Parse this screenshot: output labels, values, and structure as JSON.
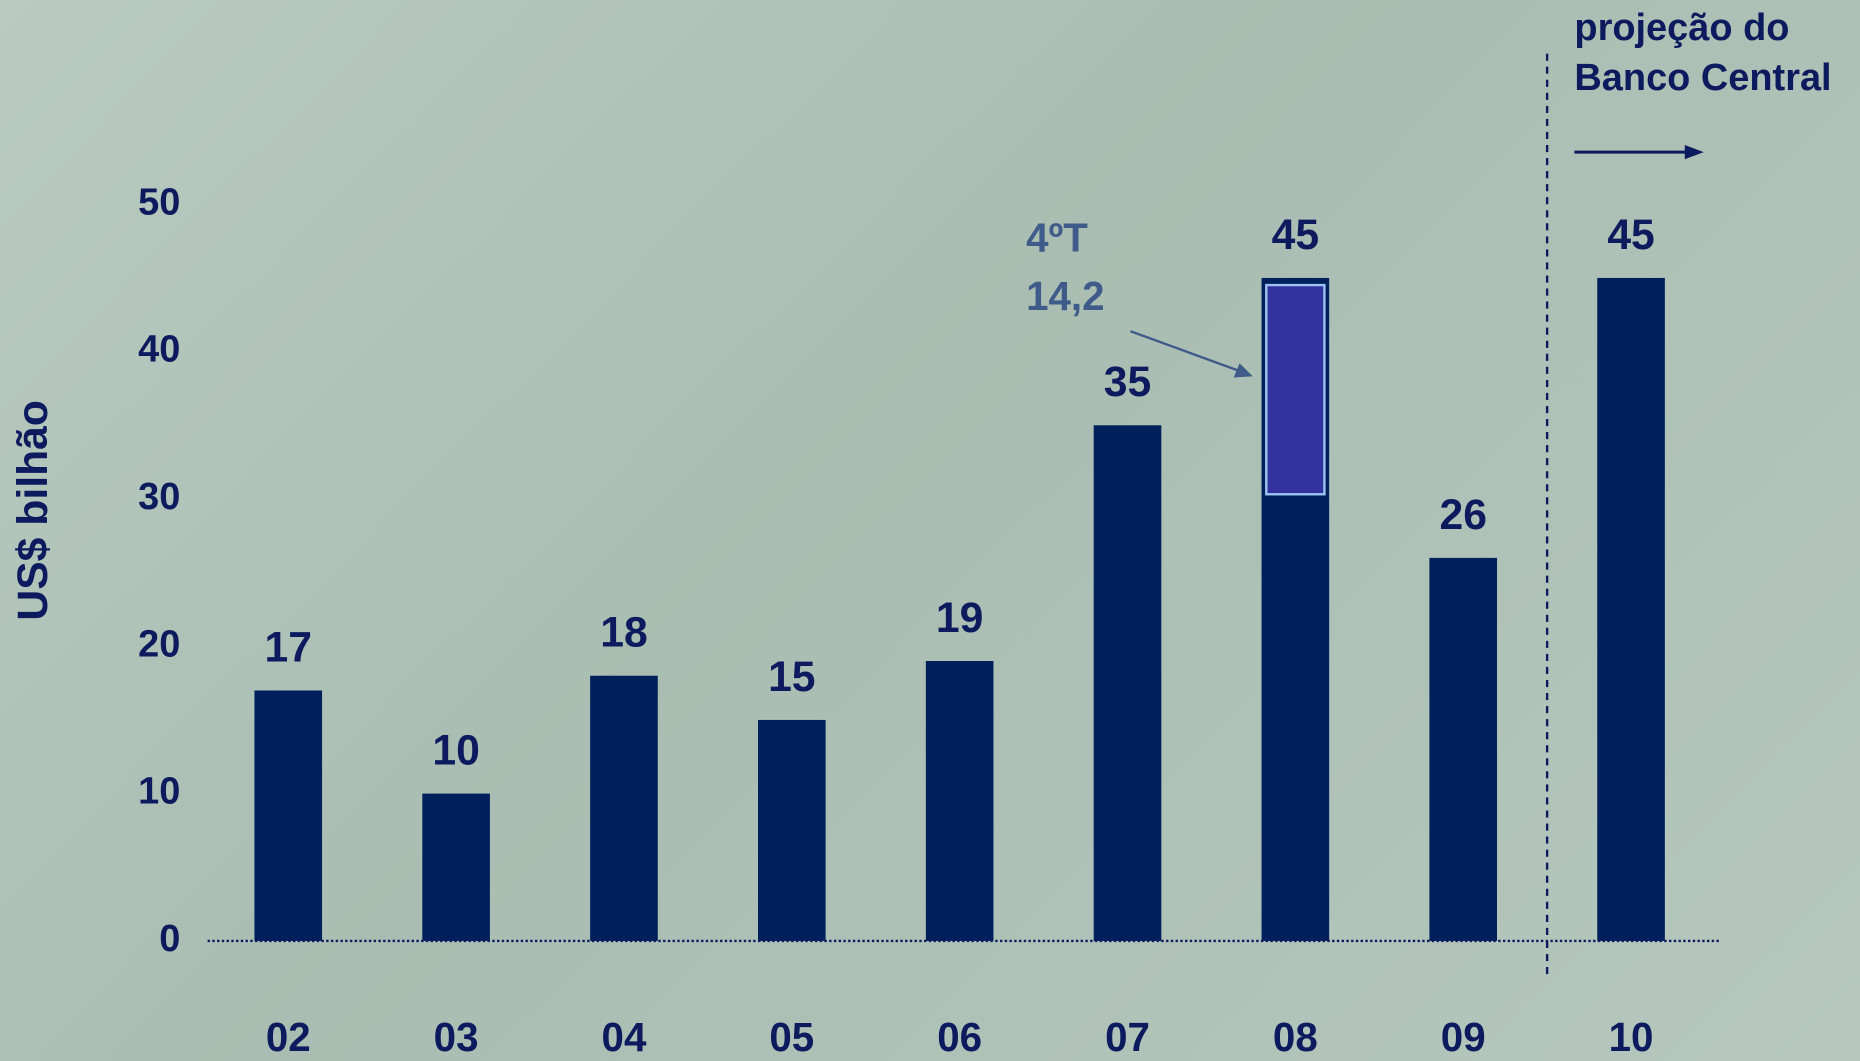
{
  "chart_data": {
    "type": "bar",
    "y_label": "US$ bilhão",
    "categories": [
      "02",
      "03",
      "04",
      "05",
      "06",
      "07",
      "08",
      "09",
      "10"
    ],
    "values": [
      17,
      10,
      18,
      15,
      19,
      35,
      45,
      26,
      45
    ],
    "color": "#00205b",
    "ylim": [
      0,
      50
    ],
    "yticks": [
      0,
      10,
      20,
      30,
      40,
      50
    ],
    "highlight": {
      "category_index": 6,
      "title": "4ºT",
      "value": 14.2,
      "value_label": "14,2",
      "color": "#3333a0"
    },
    "projection": {
      "start_index": 8,
      "lines": [
        "projeção do",
        "Banco Central"
      ]
    }
  }
}
